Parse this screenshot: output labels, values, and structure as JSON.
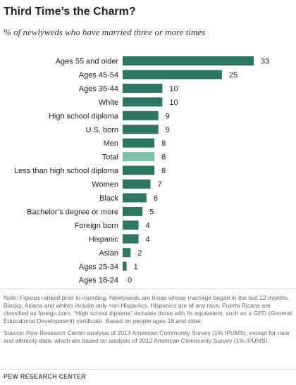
{
  "header": {
    "title": "Third Time’s the Charm?",
    "subtitle": "% of newlyweds who have married three or more times"
  },
  "chart_data": {
    "type": "bar",
    "orientation": "horizontal",
    "categories": [
      "Ages 55 and older",
      "Ages 45-54",
      "Ages 35-44",
      "White",
      "High school diploma",
      "U.S. born",
      "Men",
      "Total",
      "Less than high school diploma",
      "Women",
      "Black",
      "Bachelor’s degree or more",
      "Foreign born",
      "Hispanic",
      "Asian",
      "Ages 25-34",
      "Ages 18-24"
    ],
    "values": [
      33,
      25,
      10,
      10,
      9,
      9,
      8,
      8,
      8,
      7,
      6,
      5,
      4,
      4,
      2,
      1,
      0
    ],
    "highlight": "Total",
    "colors": {
      "bar": "#2e7563",
      "highlight": "#7fc0ab"
    },
    "title": "Third Time’s the Charm?",
    "xlabel": "",
    "ylabel": "",
    "xlim": [
      0,
      33
    ],
    "grid": false,
    "data_labels": true
  },
  "notes": {
    "note": "Note: Figures ranked prior to rounding. Newlyweds are those whose marriage began in the last 12 months. Blacks, Asians and whites include only non-Hispanics. Hispanics are of any race. Puerto Ricans are classified as foreign born. “High school diploma” includes those with its equivalent, such as a GED (General Educational Development) certificate. Based on people ages 18 and older.",
    "source": "Source: Pew Research Center analysis of 2013 American Community Survey (1% IPUMS),  except for race and ethnicity data, which are based on analysis of 2012 American Community Survey (1% IPUMS)"
  },
  "footer": {
    "org": "PEW RESEARCH CENTER"
  }
}
